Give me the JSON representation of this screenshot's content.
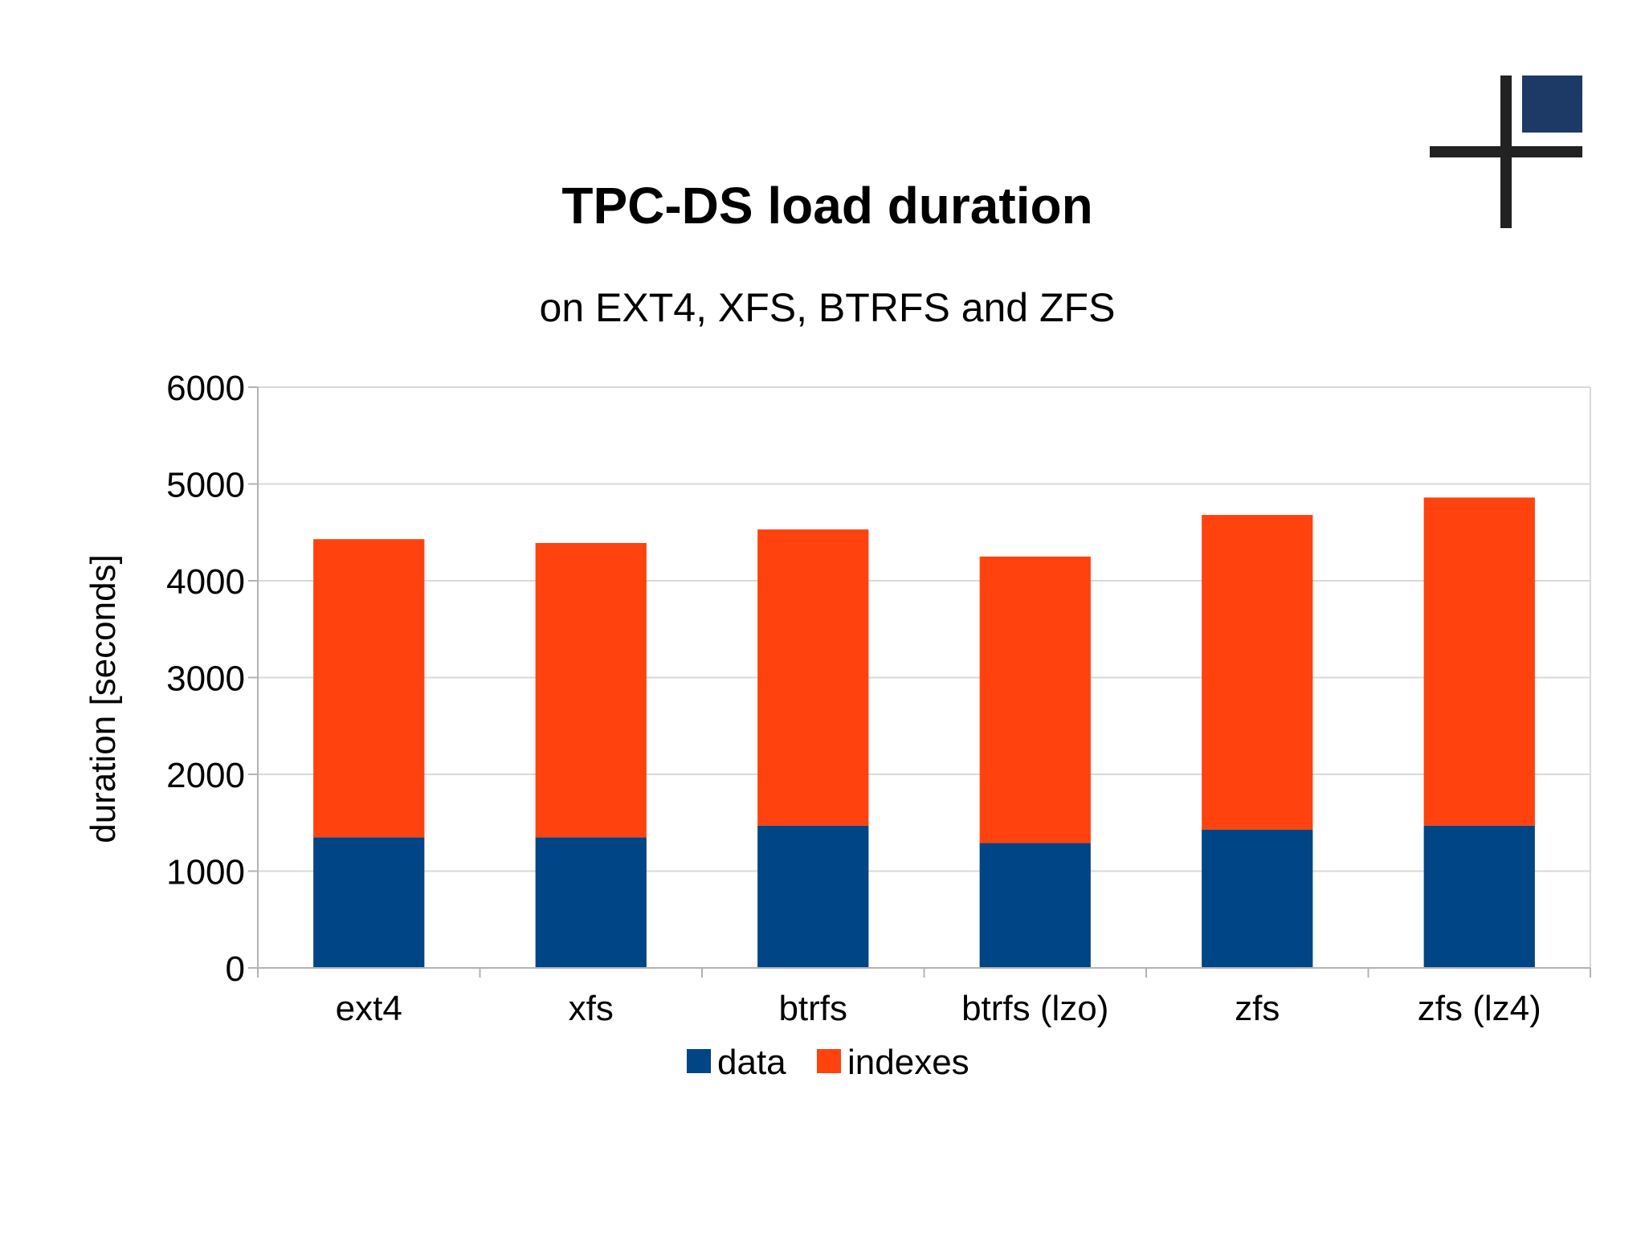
{
  "chart_data": {
    "type": "bar",
    "stacked": true,
    "title": "TPC-DS load duration",
    "subtitle": "on EXT4, XFS, BTRFS and ZFS",
    "xlabel": "",
    "ylabel": "duration [seconds]",
    "ylim": [
      0,
      6000
    ],
    "yticks": [
      0,
      1000,
      2000,
      3000,
      4000,
      5000,
      6000
    ],
    "grid": true,
    "legend_position": "bottom",
    "categories": [
      "ext4",
      "xfs",
      "btrfs",
      "btrfs (lzo)",
      "zfs",
      "zfs (lz4)"
    ],
    "series": [
      {
        "name": "data",
        "color": "#004586",
        "values": [
          1350,
          1350,
          1470,
          1290,
          1430,
          1470
        ]
      },
      {
        "name": "indexes",
        "color": "#ff420e",
        "values": [
          3080,
          3040,
          3060,
          2960,
          3250,
          3390
        ]
      }
    ]
  },
  "logo": {
    "icon": "plus-square-logo-icon",
    "colors": [
      "#222222",
      "#1d3a66"
    ]
  }
}
